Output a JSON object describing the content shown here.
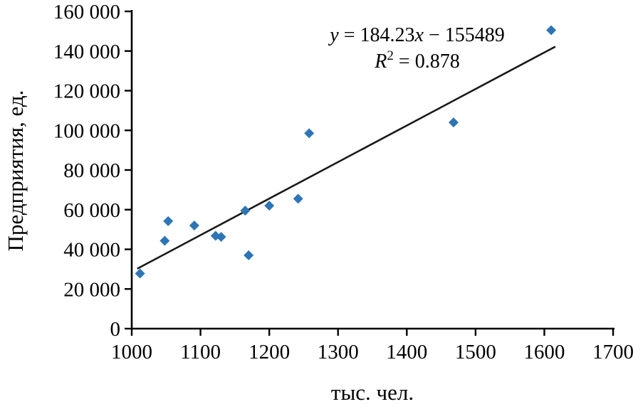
{
  "chart_data": {
    "type": "scatter",
    "title": "",
    "xlabel": "тыс. чел.",
    "ylabel": "Предприятия, ед.",
    "xlim": [
      1000,
      1700
    ],
    "ylim": [
      0,
      160000
    ],
    "grid": false,
    "legend": "none",
    "x_ticks": [
      {
        "value": 1000,
        "label": "1000"
      },
      {
        "value": 1100,
        "label": "1100"
      },
      {
        "value": 1200,
        "label": "1200"
      },
      {
        "value": 1300,
        "label": "1300"
      },
      {
        "value": 1400,
        "label": "1400"
      },
      {
        "value": 1500,
        "label": "1500"
      },
      {
        "value": 1600,
        "label": "1600"
      },
      {
        "value": 1700,
        "label": "1700"
      }
    ],
    "y_ticks": [
      {
        "value": 0,
        "label": "0"
      },
      {
        "value": 20000,
        "label": "20 000"
      },
      {
        "value": 40000,
        "label": "40 000"
      },
      {
        "value": 60000,
        "label": "60 000"
      },
      {
        "value": 80000,
        "label": "80 000"
      },
      {
        "value": 100000,
        "label": "100 000"
      },
      {
        "value": 120000,
        "label": "120 000"
      },
      {
        "value": 140000,
        "label": "140 000"
      },
      {
        "value": 160000,
        "label": "160 000"
      }
    ],
    "points": [
      [
        1012,
        27800
      ],
      [
        1048,
        44300
      ],
      [
        1053,
        54200
      ],
      [
        1091,
        52000
      ],
      [
        1122,
        46800
      ],
      [
        1130,
        46300
      ],
      [
        1165,
        59500
      ],
      [
        1170,
        37000
      ],
      [
        1200,
        62000
      ],
      [
        1242,
        65500
      ],
      [
        1258,
        98500
      ],
      [
        1468,
        104000
      ],
      [
        1610,
        150500
      ]
    ],
    "marker": {
      "shape": "diamond",
      "color": "#2e75b6",
      "size": 7
    },
    "trendline": {
      "slope": 184.23,
      "intercept": -155489,
      "x_start": 1008,
      "x_end": 1616,
      "color": "#1a1a1a",
      "width": 2.6
    },
    "annotation": {
      "equation_text": "y = 184.23x − 155489",
      "r_squared_text": "R2 = 0.878",
      "line1": [
        {
          "t": "y",
          "i": true
        },
        {
          "t": " = 184.23"
        },
        {
          "t": "x",
          "i": true
        },
        {
          "t": " − 155489"
        }
      ],
      "line2": [
        {
          "t": "R",
          "i": true
        },
        {
          "t": "2",
          "sup": true
        },
        {
          "t": " = 0.878"
        }
      ]
    },
    "axis_color": "#000000"
  }
}
